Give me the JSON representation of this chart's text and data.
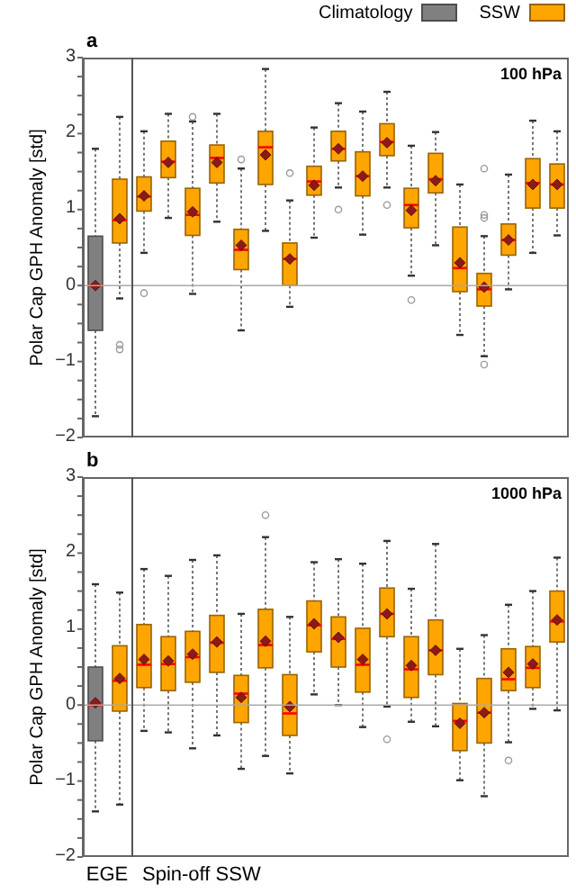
{
  "chart_data": [
    {
      "type": "box",
      "title": "a",
      "ylabel": "Polar Cap GPH Anomaly [std]",
      "annotations": [
        "100 hPa"
      ],
      "categories": [
        null,
        null,
        null,
        null,
        null,
        null,
        null,
        null,
        null,
        null,
        null,
        null,
        null,
        null,
        null,
        null,
        null,
        null,
        null,
        null
      ],
      "ylim": [
        -2,
        3
      ],
      "yticks": [
        -2,
        {
          "value": -1.75,
          "label": null
        },
        {
          "value": -1.5,
          "label": null
        },
        {
          "value": -1.25,
          "label": null
        },
        -1,
        {
          "value": -0.75,
          "label": null
        },
        {
          "value": -0.5,
          "label": null
        },
        {
          "value": -0.25,
          "label": null
        },
        0,
        {
          "value": 0.25,
          "label": null
        },
        {
          "value": 0.5,
          "label": null
        },
        {
          "value": 0.75,
          "label": null
        },
        1,
        {
          "value": 1.25,
          "label": null
        },
        {
          "value": 1.5,
          "label": null
        },
        {
          "value": 1.75,
          "label": null
        },
        2,
        {
          "value": 2.25,
          "label": null
        },
        {
          "value": 2.5,
          "label": null
        },
        {
          "value": 2.75,
          "label": null
        },
        3
      ],
      "tick_labels": "y",
      "legend": "top right",
      "marker": "diamond",
      "ref_lines": [
        {
          "axis": "y",
          "value": 0,
          "color": "#aaaaaa"
        }
      ],
      "series": [
        {
          "name": "Climatology",
          "color": "#808080",
          "boxes": [
            {
              "low": -1.72,
              "q1": -0.59,
              "median": 0,
              "q3": 0.65,
              "high": 1.8,
              "mean": 0
            },
            null,
            null,
            null,
            null,
            null,
            null,
            null,
            null,
            null,
            null,
            null,
            null,
            null,
            null,
            null,
            null,
            null,
            null,
            null
          ]
        },
        {
          "name": "SSW",
          "color": "#ffa500",
          "boxes": [
            null,
            {
              "low": -0.17,
              "q1": 0.56,
              "median": 0.86,
              "q3": 1.4,
              "high": 2.22,
              "mean": 0.88,
              "outliers": [
                -0.78,
                -0.84
              ]
            },
            {
              "low": 0.43,
              "q1": 0.98,
              "median": 1.17,
              "q3": 1.43,
              "high": 2.03,
              "mean": 1.18,
              "outliers": [
                -0.1
              ]
            },
            {
              "low": 0.89,
              "q1": 1.42,
              "median": 1.63,
              "q3": 1.9,
              "high": 2.26,
              "mean": 1.62
            },
            {
              "low": -0.11,
              "q1": 0.66,
              "median": 0.93,
              "q3": 1.28,
              "high": 2.16,
              "mean": 0.97,
              "outliers": [
                2.22
              ]
            },
            {
              "low": 0.84,
              "q1": 1.35,
              "median": 1.68,
              "q3": 1.85,
              "high": 2.26,
              "mean": 1.62
            },
            {
              "low": -0.59,
              "q1": 0.21,
              "median": 0.47,
              "q3": 0.74,
              "high": 1.54,
              "mean": 0.53,
              "outliers": [
                1.66
              ]
            },
            {
              "low": 0.72,
              "q1": 1.33,
              "median": 1.82,
              "q3": 2.03,
              "high": 2.85,
              "mean": 1.72
            },
            {
              "low": -0.28,
              "q1": 0,
              "median": 0.35,
              "q3": 0.56,
              "high": 1.12,
              "mean": 0.35,
              "outliers": [
                1.48
              ]
            },
            {
              "low": 0.63,
              "q1": 1.19,
              "median": 1.37,
              "q3": 1.57,
              "high": 2.08,
              "mean": 1.32
            },
            {
              "low": 1.29,
              "q1": 1.64,
              "median": 1.8,
              "q3": 2.03,
              "high": 2.4,
              "mean": 1.8,
              "outliers": [
                1
              ]
            },
            {
              "low": 0.67,
              "q1": 1.18,
              "median": 1.44,
              "q3": 1.76,
              "high": 2.29,
              "mean": 1.44
            },
            {
              "low": 1.29,
              "q1": 1.71,
              "median": 1.89,
              "q3": 2.13,
              "high": 2.55,
              "mean": 1.88,
              "outliers": [
                1.06
              ]
            },
            {
              "low": 0.13,
              "q1": 0.76,
              "median": 1.06,
              "q3": 1.28,
              "high": 1.84,
              "mean": 0.99,
              "outliers": [
                -0.19
              ]
            },
            {
              "low": 0.53,
              "q1": 1.22,
              "median": 1.4,
              "q3": 1.74,
              "high": 2.02,
              "mean": 1.38
            },
            {
              "low": -0.65,
              "q1": -0.08,
              "median": 0.23,
              "q3": 0.77,
              "high": 1.33,
              "mean": 0.3
            },
            {
              "low": -0.93,
              "q1": -0.27,
              "median": -0.05,
              "q3": 0.16,
              "high": 0.65,
              "mean": -0.02,
              "outliers": [
                1.54,
                0.93,
                0.89,
                -1.04
              ]
            },
            {
              "low": -0.05,
              "q1": 0.4,
              "median": 0.6,
              "q3": 0.81,
              "high": 1.46,
              "mean": 0.6
            },
            {
              "low": 0.43,
              "q1": 1.02,
              "median": 1.35,
              "q3": 1.67,
              "high": 2.17,
              "mean": 1.33
            },
            {
              "low": 0.66,
              "q1": 1.02,
              "median": 1.33,
              "q3": 1.6,
              "high": 2.03,
              "mean": 1.33
            }
          ]
        }
      ]
    },
    {
      "type": "box",
      "title": "b",
      "ylabel": "Polar Cap GPH Anomaly [std]",
      "annotations": [
        "1000 hPa",
        "EGE",
        "Spin-off SSW"
      ],
      "categories": [
        null,
        null,
        null,
        null,
        null,
        null,
        null,
        null,
        null,
        null,
        null,
        null,
        null,
        null,
        null,
        null,
        null,
        null,
        null,
        null
      ],
      "ylim": [
        -2,
        3
      ],
      "yticks": [
        -2,
        {
          "value": -1.75,
          "label": null
        },
        {
          "value": -1.5,
          "label": null
        },
        {
          "value": -1.25,
          "label": null
        },
        -1,
        {
          "value": -0.75,
          "label": null
        },
        {
          "value": -0.5,
          "label": null
        },
        {
          "value": -0.25,
          "label": null
        },
        0,
        {
          "value": 0.25,
          "label": null
        },
        {
          "value": 0.5,
          "label": null
        },
        {
          "value": 0.75,
          "label": null
        },
        1,
        {
          "value": 1.25,
          "label": null
        },
        {
          "value": 1.5,
          "label": null
        },
        {
          "value": 1.75,
          "label": null
        },
        2,
        {
          "value": 2.25,
          "label": null
        },
        {
          "value": 2.5,
          "label": null
        },
        {
          "value": 2.75,
          "label": null
        },
        3
      ],
      "tick_labels": "y",
      "marker": "diamond",
      "ref_lines": [
        {
          "axis": "y",
          "value": 0,
          "color": "#aaaaaa"
        }
      ],
      "series": [
        {
          "color": "#808080",
          "boxes": [
            {
              "low": -1.4,
              "q1": -0.47,
              "median": 0,
              "q3": 0.5,
              "high": 1.59,
              "mean": 0.03
            },
            null,
            null,
            null,
            null,
            null,
            null,
            null,
            null,
            null,
            null,
            null,
            null,
            null,
            null,
            null,
            null,
            null,
            null,
            null
          ]
        },
        {
          "color": "#ffa500",
          "boxes": [
            null,
            {
              "low": -1.31,
              "q1": -0.08,
              "median": 0.32,
              "q3": 0.78,
              "high": 1.48,
              "mean": 0.35
            },
            {
              "low": -0.34,
              "q1": 0.23,
              "median": 0.53,
              "q3": 1.06,
              "high": 1.79,
              "mean": 0.6
            },
            {
              "low": -0.36,
              "q1": 0.19,
              "median": 0.54,
              "q3": 0.9,
              "high": 1.7,
              "mean": 0.58
            },
            {
              "low": -0.57,
              "q1": 0.3,
              "median": 0.63,
              "q3": 0.97,
              "high": 1.91,
              "mean": 0.67
            },
            {
              "low": -0.4,
              "q1": 0.43,
              "median": 0.82,
              "q3": 1.18,
              "high": 1.97,
              "mean": 0.83
            },
            {
              "low": -0.84,
              "q1": -0.23,
              "median": 0.15,
              "q3": 0.39,
              "high": 1.2,
              "mean": 0.1
            },
            {
              "low": -0.67,
              "q1": 0.49,
              "median": 0.79,
              "q3": 1.26,
              "high": 2.21,
              "mean": 0.84,
              "outliers": [
                2.5
              ]
            },
            {
              "low": -0.9,
              "q1": -0.4,
              "median": -0.11,
              "q3": 0.4,
              "high": 1.16,
              "mean": -0.02
            },
            {
              "low": 0.14,
              "q1": 0.7,
              "median": 1.05,
              "q3": 1.37,
              "high": 1.88,
              "mean": 1.07
            },
            {
              "low": 0,
              "q1": 0.5,
              "median": 0.87,
              "q3": 1.16,
              "high": 1.92,
              "mean": 0.89
            },
            {
              "low": -0.29,
              "q1": 0.17,
              "median": 0.53,
              "q3": 1.01,
              "high": 1.86,
              "mean": 0.6
            },
            {
              "low": -0.02,
              "q1": 0.9,
              "median": 1.2,
              "q3": 1.54,
              "high": 2.16,
              "mean": 1.2,
              "outliers": [
                -0.45
              ]
            },
            {
              "low": -0.22,
              "q1": 0.1,
              "median": 0.47,
              "q3": 0.9,
              "high": 1.53,
              "mean": 0.52
            },
            {
              "low": -0.28,
              "q1": 0.4,
              "median": 0.72,
              "q3": 1.12,
              "high": 2.12,
              "mean": 0.72
            },
            {
              "low": -0.99,
              "q1": -0.6,
              "median": -0.21,
              "q3": 0.02,
              "high": 0.74,
              "mean": -0.24
            },
            {
              "low": -1.2,
              "q1": -0.5,
              "median": -0.1,
              "q3": 0.35,
              "high": 0.92,
              "mean": -0.1
            },
            {
              "low": -0.49,
              "q1": 0.19,
              "median": 0.34,
              "q3": 0.74,
              "high": 1.32,
              "mean": 0.43,
              "outliers": [
                -0.73
              ]
            },
            {
              "low": -0.05,
              "q1": 0.23,
              "median": 0.49,
              "q3": 0.77,
              "high": 1.5,
              "mean": 0.54
            },
            {
              "low": -0.07,
              "q1": 0.83,
              "median": 1.1,
              "q3": 1.5,
              "high": 1.94,
              "mean": 1.12
            }
          ]
        }
      ]
    }
  ]
}
